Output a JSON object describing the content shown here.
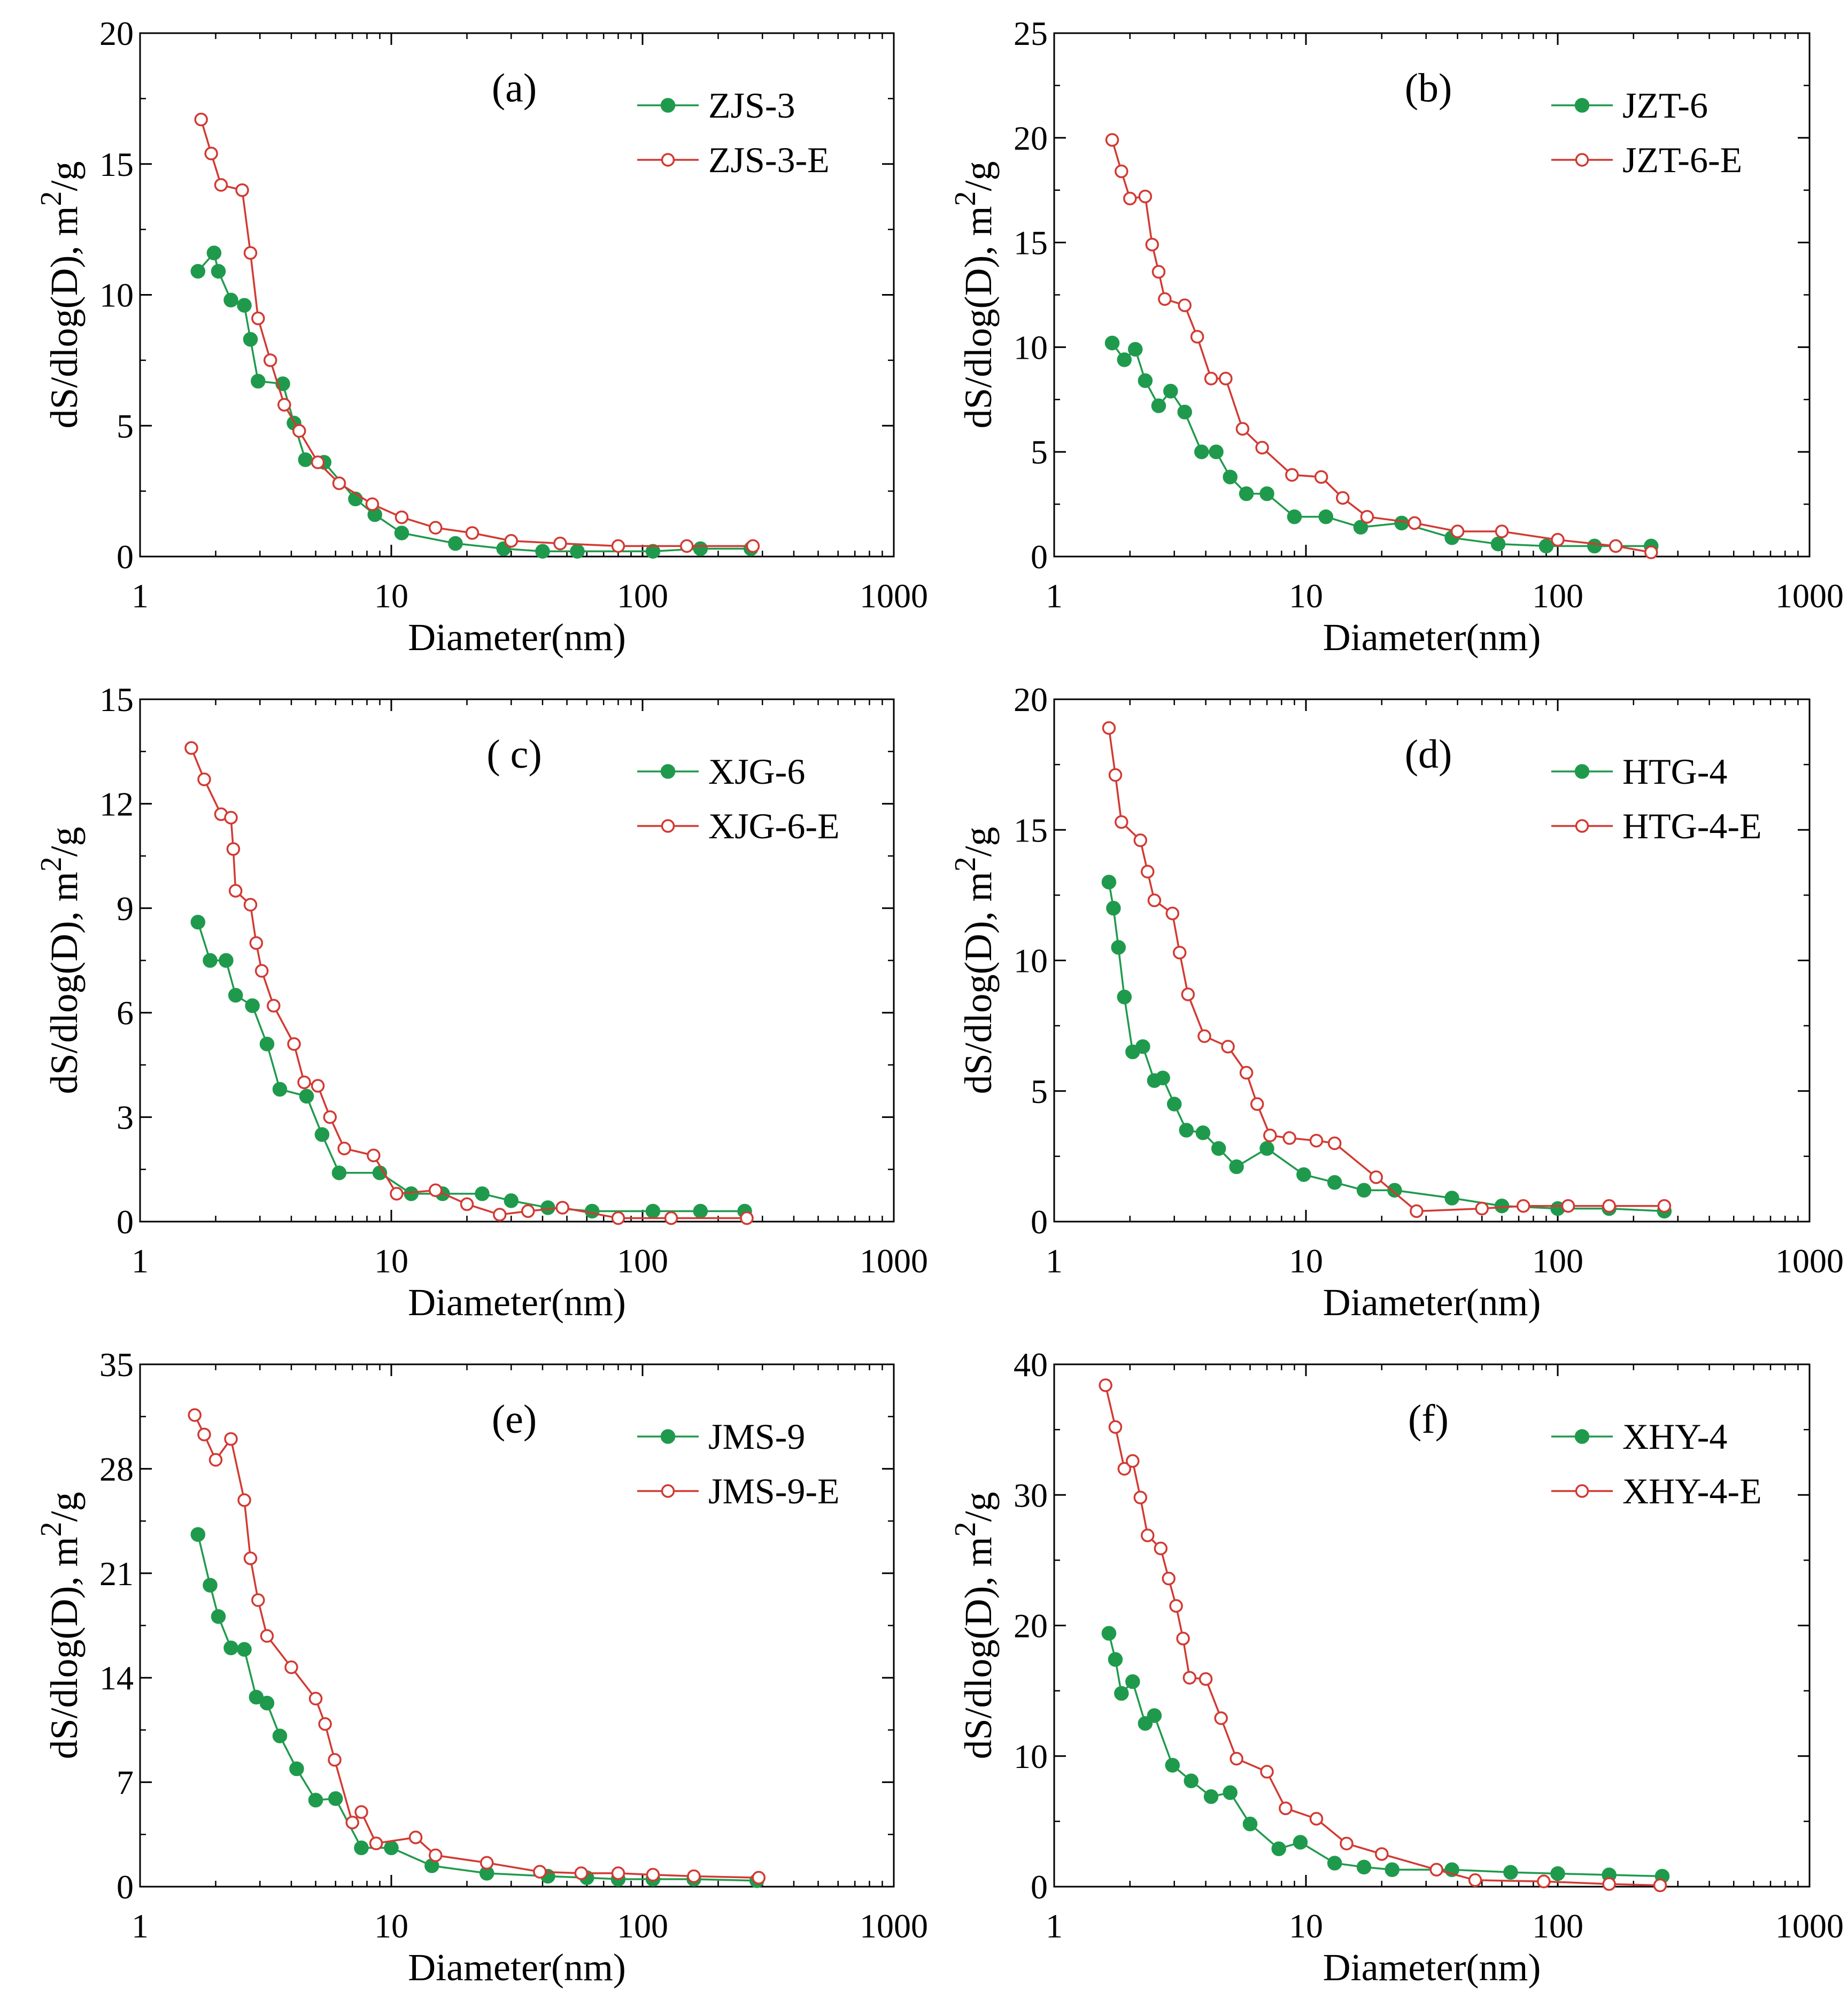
{
  "figure": {
    "styles": {
      "series_colors": {
        "base": "#1f9a4c",
        "extracted": "#d23a33"
      },
      "axis_color": "#000000"
    }
  },
  "chart_data": [
    {
      "panel": "(a)",
      "type": "line",
      "xscale": "log",
      "xlabel": "Diameter(nm)",
      "ylabel": "dS/dlog(D), m",
      "ylabel_exp": "2",
      "ylabel_tail": "/g",
      "xlim": [
        1,
        1000
      ],
      "ylim": [
        0,
        20
      ],
      "xticks": [
        1,
        10,
        100,
        1000
      ],
      "xtick_labels": [
        "1",
        "10",
        "100",
        "1000"
      ],
      "yticks": [
        0,
        5,
        10,
        15,
        20
      ],
      "ytick_labels": [
        "0",
        "5",
        "10",
        "15",
        "20"
      ],
      "legend_position": "top-right",
      "series": [
        {
          "name": "ZJS-3",
          "marker": "filled-circle",
          "x": [
            1.7,
            1.97,
            2.05,
            2.3,
            2.6,
            2.75,
            2.95,
            3.7,
            4.1,
            4.55,
            5.4,
            7.2,
            8.6,
            11,
            18,
            28,
            40,
            55,
            110,
            170,
            270
          ],
          "y": [
            10.9,
            11.6,
            10.9,
            9.8,
            9.6,
            8.3,
            6.7,
            6.6,
            5.1,
            3.7,
            3.6,
            2.2,
            1.6,
            0.9,
            0.5,
            0.3,
            0.2,
            0.2,
            0.2,
            0.3,
            0.3
          ]
        },
        {
          "name": "ZJS-3-E",
          "marker": "open-circle",
          "x": [
            1.75,
            1.92,
            2.1,
            2.55,
            2.75,
            2.95,
            3.3,
            3.75,
            4.3,
            5.1,
            6.2,
            8.4,
            11,
            15,
            21,
            30,
            47,
            80,
            150,
            275
          ],
          "y": [
            16.7,
            15.4,
            14.2,
            14.0,
            11.6,
            9.1,
            7.5,
            5.8,
            4.8,
            3.6,
            2.8,
            2.0,
            1.5,
            1.1,
            0.9,
            0.6,
            0.5,
            0.4,
            0.4,
            0.4
          ]
        }
      ]
    },
    {
      "panel": "(b)",
      "type": "line",
      "xscale": "log",
      "xlabel": "Diameter(nm)",
      "ylabel": "dS/dlog(D), m",
      "ylabel_exp": "2",
      "ylabel_tail": "/g",
      "xlim": [
        1,
        1000
      ],
      "ylim": [
        0,
        25
      ],
      "xticks": [
        1,
        10,
        100,
        1000
      ],
      "xtick_labels": [
        "1",
        "10",
        "100",
        "1000"
      ],
      "yticks": [
        0,
        5,
        10,
        15,
        20,
        25
      ],
      "ytick_labels": [
        "0",
        "5",
        "10",
        "15",
        "20",
        "25"
      ],
      "legend_position": "top-right",
      "series": [
        {
          "name": "JZT-6",
          "marker": "filled-circle",
          "x": [
            1.7,
            1.9,
            2.1,
            2.3,
            2.6,
            2.9,
            3.3,
            3.85,
            4.4,
            5.0,
            5.8,
            7.0,
            9.0,
            12,
            16.5,
            24,
            38,
            58,
            90,
            140,
            235
          ],
          "y": [
            10.2,
            9.4,
            9.9,
            8.4,
            7.2,
            7.9,
            6.9,
            5.0,
            5.0,
            3.8,
            3.0,
            3.0,
            1.9,
            1.9,
            1.4,
            1.6,
            0.9,
            0.6,
            0.5,
            0.5,
            0.5
          ]
        },
        {
          "name": "JZT-6-E",
          "marker": "open-circle",
          "x": [
            1.7,
            1.85,
            2.0,
            2.3,
            2.45,
            2.6,
            2.75,
            3.3,
            3.7,
            4.2,
            4.8,
            5.6,
            6.7,
            8.8,
            11.5,
            14,
            17.5,
            27,
            40,
            60,
            100,
            170,
            235
          ],
          "y": [
            19.9,
            18.4,
            17.1,
            17.2,
            14.9,
            13.6,
            12.3,
            12.0,
            10.5,
            8.5,
            8.5,
            6.1,
            5.2,
            3.9,
            3.8,
            2.8,
            1.9,
            1.6,
            1.2,
            1.2,
            0.8,
            0.5,
            0.2
          ]
        }
      ]
    },
    {
      "panel": "( c)",
      "type": "line",
      "xscale": "log",
      "xlabel": "Diameter(nm)",
      "ylabel": "dS/dlog(D), m",
      "ylabel_exp": "2",
      "ylabel_tail": "/g",
      "xlim": [
        1,
        1000
      ],
      "ylim": [
        0,
        15
      ],
      "xticks": [
        1,
        10,
        100,
        1000
      ],
      "xtick_labels": [
        "1",
        "10",
        "100",
        "1000"
      ],
      "yticks": [
        0,
        3,
        6,
        9,
        12,
        15
      ],
      "ytick_labels": [
        "0",
        "3",
        "6",
        "9",
        "12",
        "15"
      ],
      "legend_position": "top-right",
      "series": [
        {
          "name": "XJG-6",
          "marker": "filled-circle",
          "x": [
            1.7,
            1.9,
            2.2,
            2.4,
            2.8,
            3.2,
            3.6,
            4.6,
            5.3,
            6.2,
            9.0,
            12,
            16,
            23,
            30,
            42,
            63,
            110,
            170,
            255
          ],
          "y": [
            8.6,
            7.5,
            7.5,
            6.5,
            6.2,
            5.1,
            3.8,
            3.6,
            2.5,
            1.4,
            1.4,
            0.8,
            0.8,
            0.8,
            0.6,
            0.4,
            0.3,
            0.3,
            0.3,
            0.3
          ]
        },
        {
          "name": "XJG-6-E",
          "marker": "open-circle",
          "x": [
            1.6,
            1.8,
            2.1,
            2.3,
            2.35,
            2.4,
            2.75,
            2.9,
            3.05,
            3.4,
            4.1,
            4.5,
            5.1,
            5.7,
            6.5,
            8.5,
            10.5,
            15,
            20,
            27,
            35,
            48,
            80,
            130,
            260
          ],
          "y": [
            13.6,
            12.7,
            11.7,
            11.6,
            10.7,
            9.5,
            9.1,
            8.0,
            7.2,
            6.2,
            5.1,
            4.0,
            3.9,
            3.0,
            2.1,
            1.9,
            0.8,
            0.9,
            0.5,
            0.2,
            0.3,
            0.4,
            0.1,
            0.1,
            0.1
          ]
        }
      ]
    },
    {
      "panel": "(d)",
      "type": "line",
      "xscale": "log",
      "xlabel": "Diameter(nm)",
      "ylabel": "dS/dlog(D), m",
      "ylabel_exp": "2",
      "ylabel_tail": "/g",
      "xlim": [
        1,
        1000
      ],
      "ylim": [
        0,
        20
      ],
      "xticks": [
        1,
        10,
        100,
        1000
      ],
      "xtick_labels": [
        "1",
        "10",
        "100",
        "1000"
      ],
      "yticks": [
        0,
        5,
        10,
        15,
        20
      ],
      "ytick_labels": [
        "0",
        "5",
        "10",
        "15",
        "20"
      ],
      "legend_position": "top-right",
      "series": [
        {
          "name": "HTG-4",
          "marker": "filled-circle",
          "x": [
            1.65,
            1.72,
            1.8,
            1.9,
            2.05,
            2.25,
            2.5,
            2.7,
            3.0,
            3.35,
            3.9,
            4.5,
            5.3,
            7.0,
            9.8,
            13,
            17,
            22.5,
            38,
            60,
            100,
            160,
            265
          ],
          "y": [
            13.0,
            12.0,
            10.5,
            8.6,
            6.5,
            6.7,
            5.4,
            5.5,
            4.5,
            3.5,
            3.4,
            2.8,
            2.1,
            2.8,
            1.8,
            1.5,
            1.2,
            1.2,
            0.9,
            0.6,
            0.5,
            0.5,
            0.4
          ]
        },
        {
          "name": "HTG-4-E",
          "marker": "open-circle",
          "x": [
            1.65,
            1.75,
            1.85,
            2.2,
            2.35,
            2.5,
            2.95,
            3.15,
            3.4,
            3.95,
            4.9,
            5.8,
            6.4,
            7.2,
            8.6,
            11,
            13,
            19,
            27.5,
            50,
            73,
            110,
            160,
            265
          ],
          "y": [
            18.9,
            17.1,
            15.3,
            14.6,
            13.4,
            12.3,
            11.8,
            10.3,
            8.7,
            7.1,
            6.7,
            5.7,
            4.5,
            3.3,
            3.2,
            3.1,
            3.0,
            1.7,
            0.4,
            0.5,
            0.6,
            0.6,
            0.6,
            0.6
          ]
        }
      ]
    },
    {
      "panel": "(e)",
      "type": "line",
      "xscale": "log",
      "xlabel": "Diameter(nm)",
      "ylabel": "dS/dlog(D), m",
      "ylabel_exp": "2",
      "ylabel_tail": "/g",
      "xlim": [
        1,
        1000
      ],
      "ylim": [
        0,
        35
      ],
      "xticks": [
        1,
        10,
        100,
        1000
      ],
      "xtick_labels": [
        "1",
        "10",
        "100",
        "1000"
      ],
      "yticks": [
        0,
        7,
        14,
        21,
        28,
        35
      ],
      "ytick_labels": [
        "0",
        "7",
        "14",
        "21",
        "28",
        "35"
      ],
      "legend_position": "top-right",
      "series": [
        {
          "name": "JMS-9",
          "marker": "filled-circle",
          "x": [
            1.7,
            1.9,
            2.05,
            2.3,
            2.6,
            2.9,
            3.2,
            3.6,
            4.2,
            5.0,
            6.0,
            7.6,
            10,
            14.5,
            24,
            42,
            60,
            80,
            110,
            160,
            285
          ],
          "y": [
            23.6,
            20.2,
            18.1,
            16.0,
            15.9,
            12.7,
            12.3,
            10.1,
            7.9,
            5.8,
            5.9,
            2.6,
            2.6,
            1.4,
            0.9,
            0.7,
            0.6,
            0.5,
            0.5,
            0.5,
            0.4
          ]
        },
        {
          "name": "JMS-9-E",
          "marker": "open-circle",
          "x": [
            1.65,
            1.8,
            2.0,
            2.3,
            2.6,
            2.75,
            2.95,
            3.2,
            4.0,
            5.0,
            5.45,
            5.95,
            7.0,
            7.6,
            8.7,
            12.5,
            15,
            24,
            39,
            57,
            80,
            110,
            160,
            290
          ],
          "y": [
            31.6,
            30.3,
            28.6,
            30.0,
            25.9,
            22.0,
            19.2,
            16.8,
            14.7,
            12.6,
            10.9,
            8.5,
            4.3,
            5.0,
            2.9,
            3.3,
            2.1,
            1.6,
            1.0,
            0.9,
            0.9,
            0.8,
            0.7,
            0.6
          ]
        }
      ]
    },
    {
      "panel": "(f)",
      "type": "line",
      "xscale": "log",
      "xlabel": "Diameter(nm)",
      "ylabel": "dS/dlog(D), m",
      "ylabel_exp": "2",
      "ylabel_tail": "/g",
      "xlim": [
        1,
        1000
      ],
      "ylim": [
        0,
        40
      ],
      "xticks": [
        1,
        10,
        100,
        1000
      ],
      "xtick_labels": [
        "1",
        "10",
        "100",
        "1000"
      ],
      "yticks": [
        0,
        10,
        20,
        30,
        40
      ],
      "ytick_labels": [
        "0",
        "10",
        "20",
        "30",
        "40"
      ],
      "legend_position": "top-right",
      "series": [
        {
          "name": "XHY-4",
          "marker": "filled-circle",
          "x": [
            1.65,
            1.75,
            1.85,
            2.05,
            2.3,
            2.5,
            2.95,
            3.5,
            4.2,
            5.0,
            6.0,
            7.8,
            9.5,
            13,
            17,
            22,
            38,
            65,
            100,
            160,
            260
          ],
          "y": [
            19.4,
            17.4,
            14.8,
            15.7,
            12.5,
            13.1,
            9.3,
            8.1,
            6.9,
            7.2,
            4.8,
            2.9,
            3.4,
            1.8,
            1.5,
            1.3,
            1.3,
            1.1,
            1.0,
            0.9,
            0.8
          ]
        },
        {
          "name": "XHY-4-E",
          "marker": "open-circle",
          "x": [
            1.6,
            1.75,
            1.9,
            2.05,
            2.2,
            2.35,
            2.65,
            2.85,
            3.05,
            3.25,
            3.45,
            4.0,
            4.6,
            5.3,
            7.0,
            8.3,
            11,
            14.5,
            20,
            33,
            47,
            88,
            160,
            255
          ],
          "y": [
            38.4,
            35.2,
            32.0,
            32.6,
            29.8,
            26.9,
            25.9,
            23.6,
            21.5,
            19.0,
            16.0,
            15.9,
            12.9,
            9.8,
            8.8,
            6.0,
            5.2,
            3.3,
            2.5,
            1.3,
            0.5,
            0.4,
            0.2,
            0.1
          ]
        }
      ]
    }
  ]
}
